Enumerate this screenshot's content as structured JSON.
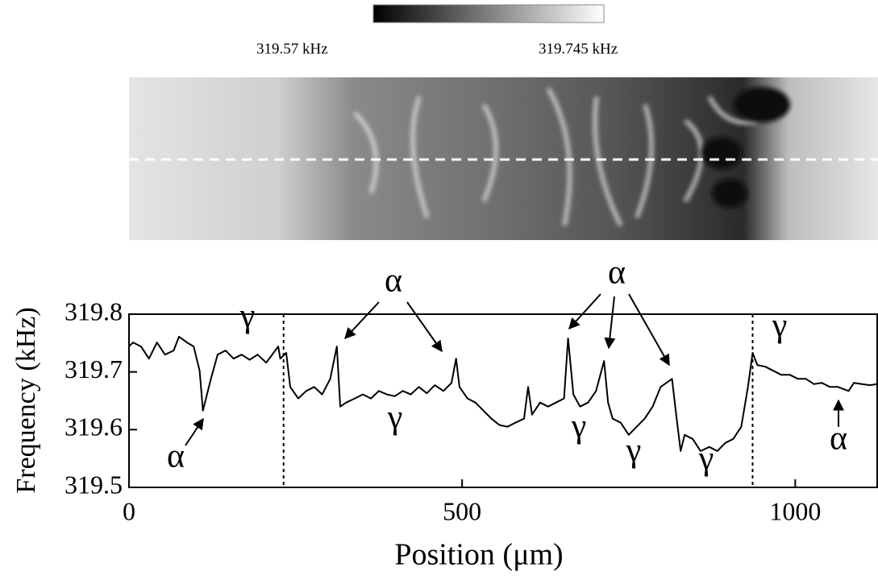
{
  "colorbar": {
    "min": {
      "value": 319.57,
      "label": "319.57 kHz"
    },
    "max": {
      "value": 319.745,
      "label": "319.745 kHz"
    }
  },
  "chart_data": {
    "type": "line",
    "xlabel": "Position (μm)",
    "ylabel": "Frequency (kHz)",
    "xlim": [
      0,
      1123
    ],
    "ylim": [
      319.5,
      319.8
    ],
    "xticks": [
      0,
      500,
      1000
    ],
    "yticks": [
      319.5,
      319.6,
      319.7,
      319.8
    ],
    "reference_lines": [
      232,
      936
    ],
    "x": [
      0,
      6,
      18,
      30,
      42,
      54,
      67,
      75,
      87,
      97,
      106,
      111,
      123,
      133,
      145,
      157,
      169,
      181,
      193,
      206,
      224,
      227,
      236,
      242,
      254,
      266,
      278,
      290,
      302,
      312,
      317,
      326,
      339,
      351,
      363,
      375,
      387,
      399,
      411,
      423,
      435,
      447,
      459,
      472,
      484,
      491,
      496,
      508,
      520,
      532,
      544,
      556,
      568,
      580,
      593,
      599,
      605,
      617,
      629,
      641,
      653,
      659,
      667,
      677,
      689,
      701,
      713,
      719,
      726,
      738,
      750,
      762,
      774,
      786,
      798,
      815,
      822,
      828,
      834,
      846,
      858,
      871,
      883,
      895,
      907,
      919,
      929,
      936,
      943,
      955,
      967,
      979,
      992,
      1004,
      1016,
      1028,
      1040,
      1052,
      1064,
      1080,
      1088,
      1100,
      1112,
      1123
    ],
    "series": [
      {
        "color": "#000000",
        "values": [
          319.744,
          319.751,
          319.744,
          319.723,
          319.751,
          319.73,
          319.737,
          319.761,
          319.751,
          319.744,
          319.702,
          319.633,
          319.688,
          319.73,
          319.737,
          319.723,
          319.73,
          319.721,
          319.73,
          319.716,
          319.744,
          319.723,
          319.733,
          319.674,
          319.654,
          319.667,
          319.674,
          319.661,
          319.688,
          319.744,
          319.64,
          319.647,
          319.654,
          319.661,
          319.654,
          319.667,
          319.661,
          319.658,
          319.667,
          319.661,
          319.674,
          319.663,
          319.677,
          319.667,
          319.681,
          319.723,
          319.674,
          319.654,
          319.647,
          319.633,
          319.619,
          319.608,
          319.605,
          319.612,
          319.619,
          319.674,
          319.626,
          319.647,
          319.64,
          319.647,
          319.654,
          319.758,
          319.661,
          319.64,
          319.647,
          319.667,
          319.719,
          319.647,
          319.619,
          319.612,
          319.591,
          319.605,
          319.619,
          319.64,
          319.674,
          319.688,
          319.619,
          319.563,
          319.591,
          319.584,
          319.563,
          319.57,
          319.563,
          319.577,
          319.584,
          319.605,
          319.674,
          319.733,
          319.712,
          319.709,
          319.702,
          319.695,
          319.695,
          319.688,
          319.688,
          319.679,
          319.681,
          319.674,
          319.674,
          319.667,
          319.681,
          319.679,
          319.677,
          319.679
        ]
      }
    ],
    "annotations": [
      "α",
      "α",
      "γ",
      "α",
      "γ",
      "γ",
      "γ",
      "γ",
      "γ",
      "α"
    ]
  }
}
